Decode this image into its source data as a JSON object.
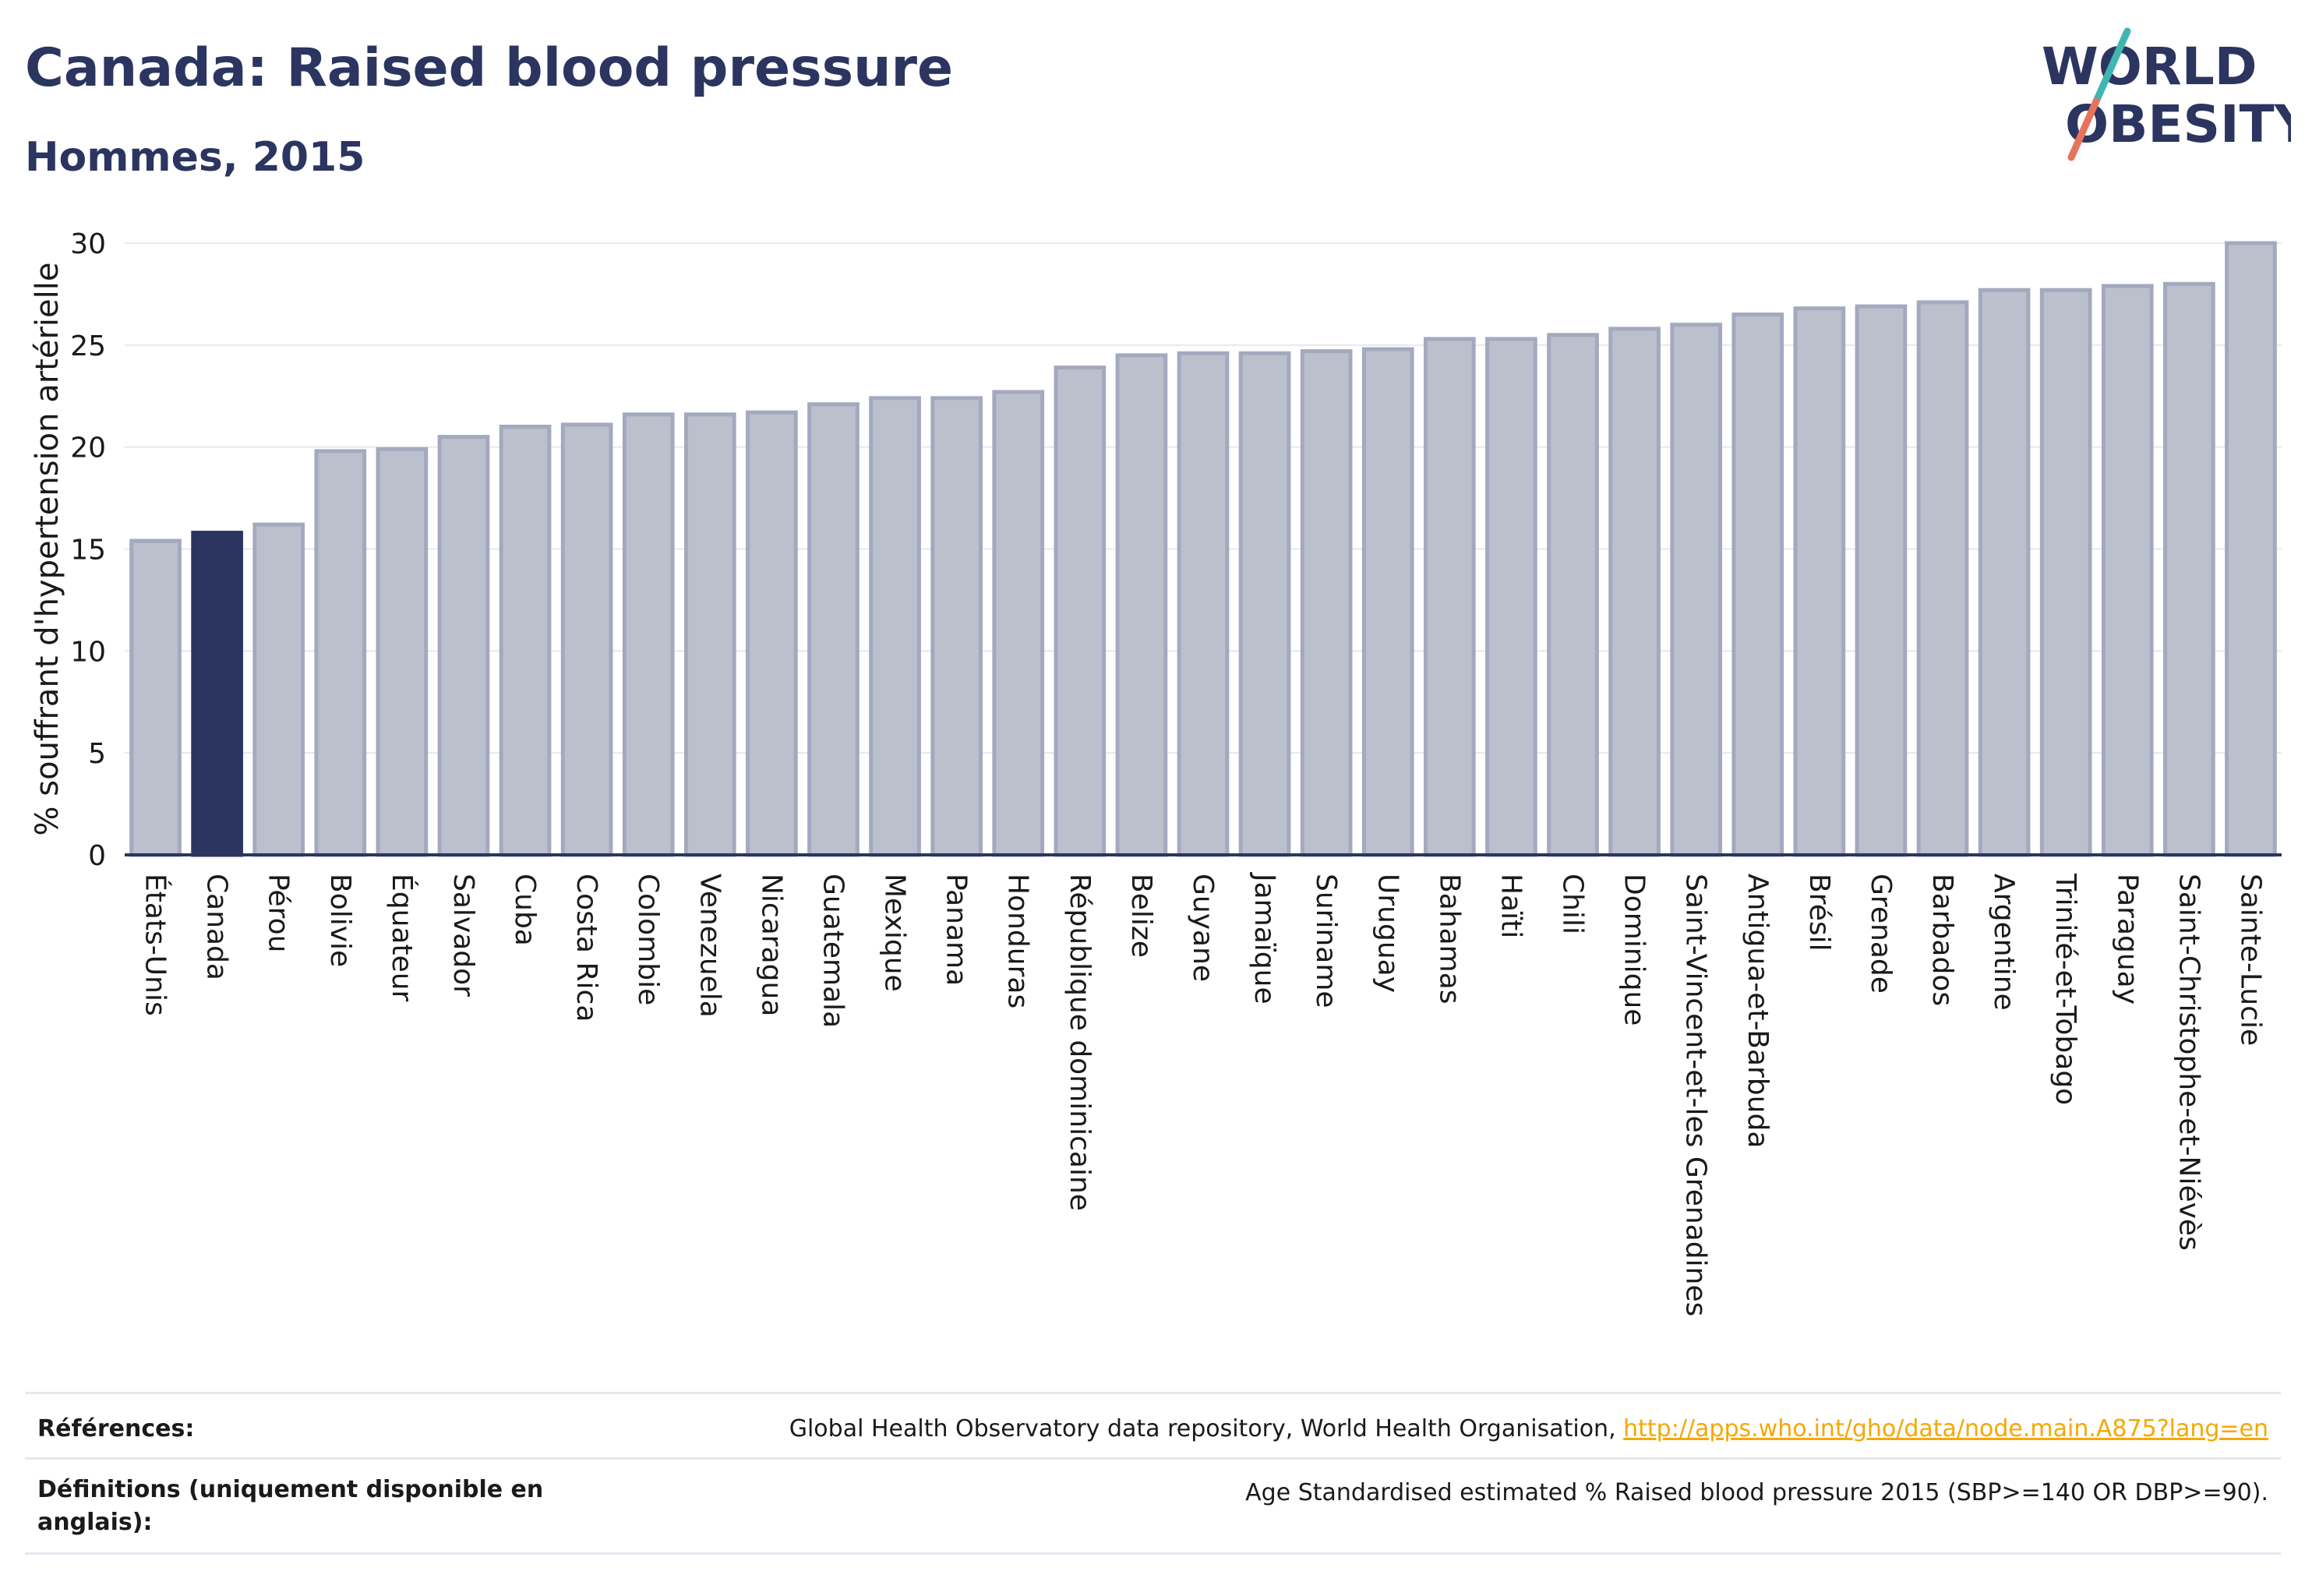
{
  "title": "Canada: Raised blood pressure",
  "subtitle": "Hommes, 2015",
  "logo": {
    "line1": "WORLD",
    "line2": "OBESITY",
    "colors": {
      "text": "#2b3560",
      "teal": "#3fb6b2",
      "coral": "#e8735c"
    }
  },
  "colors": {
    "bar": "#bcc0cd",
    "bar_stroke": "#a3a9bf",
    "highlight": "#2b3560",
    "grid": "#e6e8ef",
    "axis": "#2b3560"
  },
  "chart_data": {
    "type": "bar",
    "ylabel": "% souffrant d'hypertension artérielle",
    "ylim": [
      0,
      30
    ],
    "yticks": [
      0,
      5,
      10,
      15,
      20,
      25,
      30
    ],
    "highlight": "Canada",
    "categories": [
      "États-Unis",
      "Canada",
      "Pérou",
      "Bolivie",
      "Équateur",
      "Salvador",
      "Cuba",
      "Costa Rica",
      "Colombie",
      "Venezuela",
      "Nicaragua",
      "Guatemala",
      "Mexique",
      "Panama",
      "Honduras",
      "République dominicaine",
      "Belize",
      "Guyane",
      "Jamaïque",
      "Suriname",
      "Uruguay",
      "Bahamas",
      "Haïti",
      "Chili",
      "Dominique",
      "Saint-Vincent-et-les Grenadines",
      "Antigua-et-Barbuda",
      "Brésil",
      "Grenade",
      "Barbados",
      "Argentine",
      "Trinité-et-Tobago",
      "Paraguay",
      "Saint-Christophe-et-Niévès",
      "Sainte-Lucie"
    ],
    "values": [
      15.4,
      15.8,
      16.2,
      19.8,
      19.9,
      20.5,
      21.0,
      21.1,
      21.6,
      21.6,
      21.7,
      22.1,
      22.4,
      22.4,
      22.7,
      23.9,
      24.5,
      24.6,
      24.6,
      24.7,
      24.8,
      25.3,
      25.3,
      25.5,
      25.8,
      26.0,
      26.5,
      26.8,
      26.9,
      27.1,
      27.7,
      27.7,
      27.9,
      28.0,
      30.0
    ]
  },
  "footer": {
    "references_label": "Références:",
    "references_text": "Global Health Observatory data repository, World Health Organisation, ",
    "references_link": "http://apps.who.int/gho/data/node.main.A875?lang=en",
    "definitions_label": "Définitions (uniquement disponible en anglais):",
    "definitions_text": "Age Standardised estimated % Raised blood pressure 2015 (SBP>=140 OR DBP>=90)."
  }
}
